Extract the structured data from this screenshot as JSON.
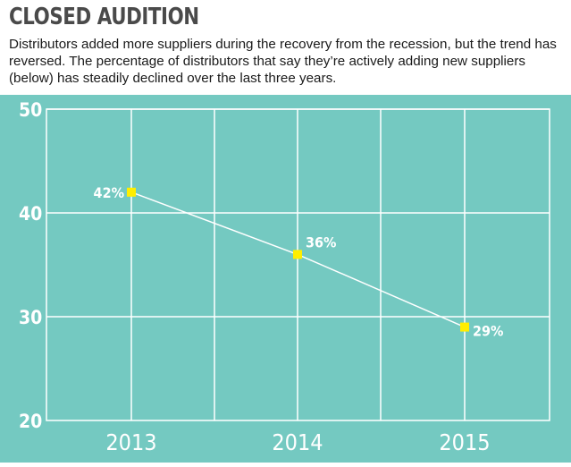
{
  "header": {
    "title": "CLOSED AUDITION",
    "subtitle": "Distributors added more suppliers during the recovery from the recession, but the trend has reversed. The percentage of distributors that say they’re actively adding new suppliers (below) has steadily declined over the last three years."
  },
  "colors": {
    "background": "#74c9c1",
    "grid": "#ffffff",
    "line": "#ffffff",
    "marker": "#ffee00",
    "text": "#ffffff"
  },
  "chart_data": {
    "type": "line",
    "categories": [
      "2013",
      "2014",
      "2015"
    ],
    "series": [
      {
        "values": [
          42,
          36,
          29
        ],
        "labels": [
          "42%",
          "36%",
          "29%"
        ]
      }
    ],
    "ylim": [
      20,
      50
    ],
    "yticks": [
      "50",
      "40",
      "30",
      "20"
    ],
    "grid": true
  }
}
